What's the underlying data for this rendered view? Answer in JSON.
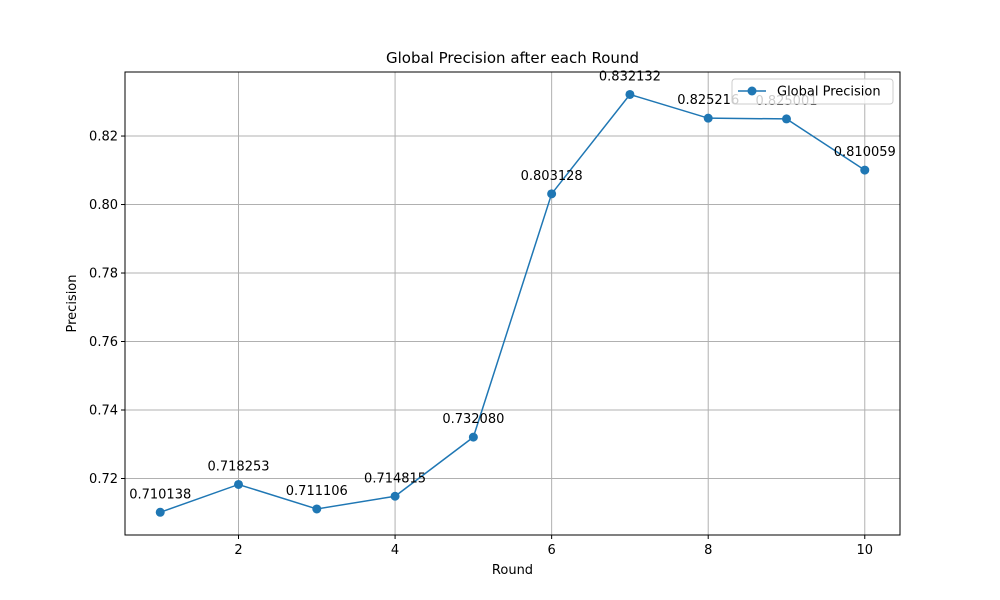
{
  "chart_data": {
    "type": "line",
    "title": "Global Precision after each Round",
    "xlabel": "Round",
    "ylabel": "Precision",
    "xlim": [
      0.55,
      10.45
    ],
    "ylim": [
      0.7035,
      0.8387
    ],
    "xticks": [
      2,
      4,
      6,
      8,
      10
    ],
    "xtick_labels": [
      "2",
      "4",
      "6",
      "8",
      "10"
    ],
    "yticks": [
      0.72,
      0.74,
      0.76,
      0.78,
      0.8,
      0.82
    ],
    "ytick_labels": [
      "0.72",
      "0.74",
      "0.76",
      "0.78",
      "0.80",
      "0.82"
    ],
    "grid": true,
    "legend_position": "upper-right",
    "series": [
      {
        "name": "Global Precision",
        "color": "#1f77b4",
        "x": [
          1,
          2,
          3,
          4,
          5,
          6,
          7,
          8,
          9,
          10
        ],
        "values": [
          0.710138,
          0.718253,
          0.711106,
          0.714815,
          0.73208,
          0.803128,
          0.832132,
          0.825216,
          0.825001,
          0.810059
        ],
        "labels": [
          "0.710138",
          "0.718253",
          "0.711106",
          "0.714815",
          "0.732080",
          "0.803128",
          "0.832132",
          "0.825216",
          "0.825001",
          "0.810059"
        ]
      }
    ]
  }
}
